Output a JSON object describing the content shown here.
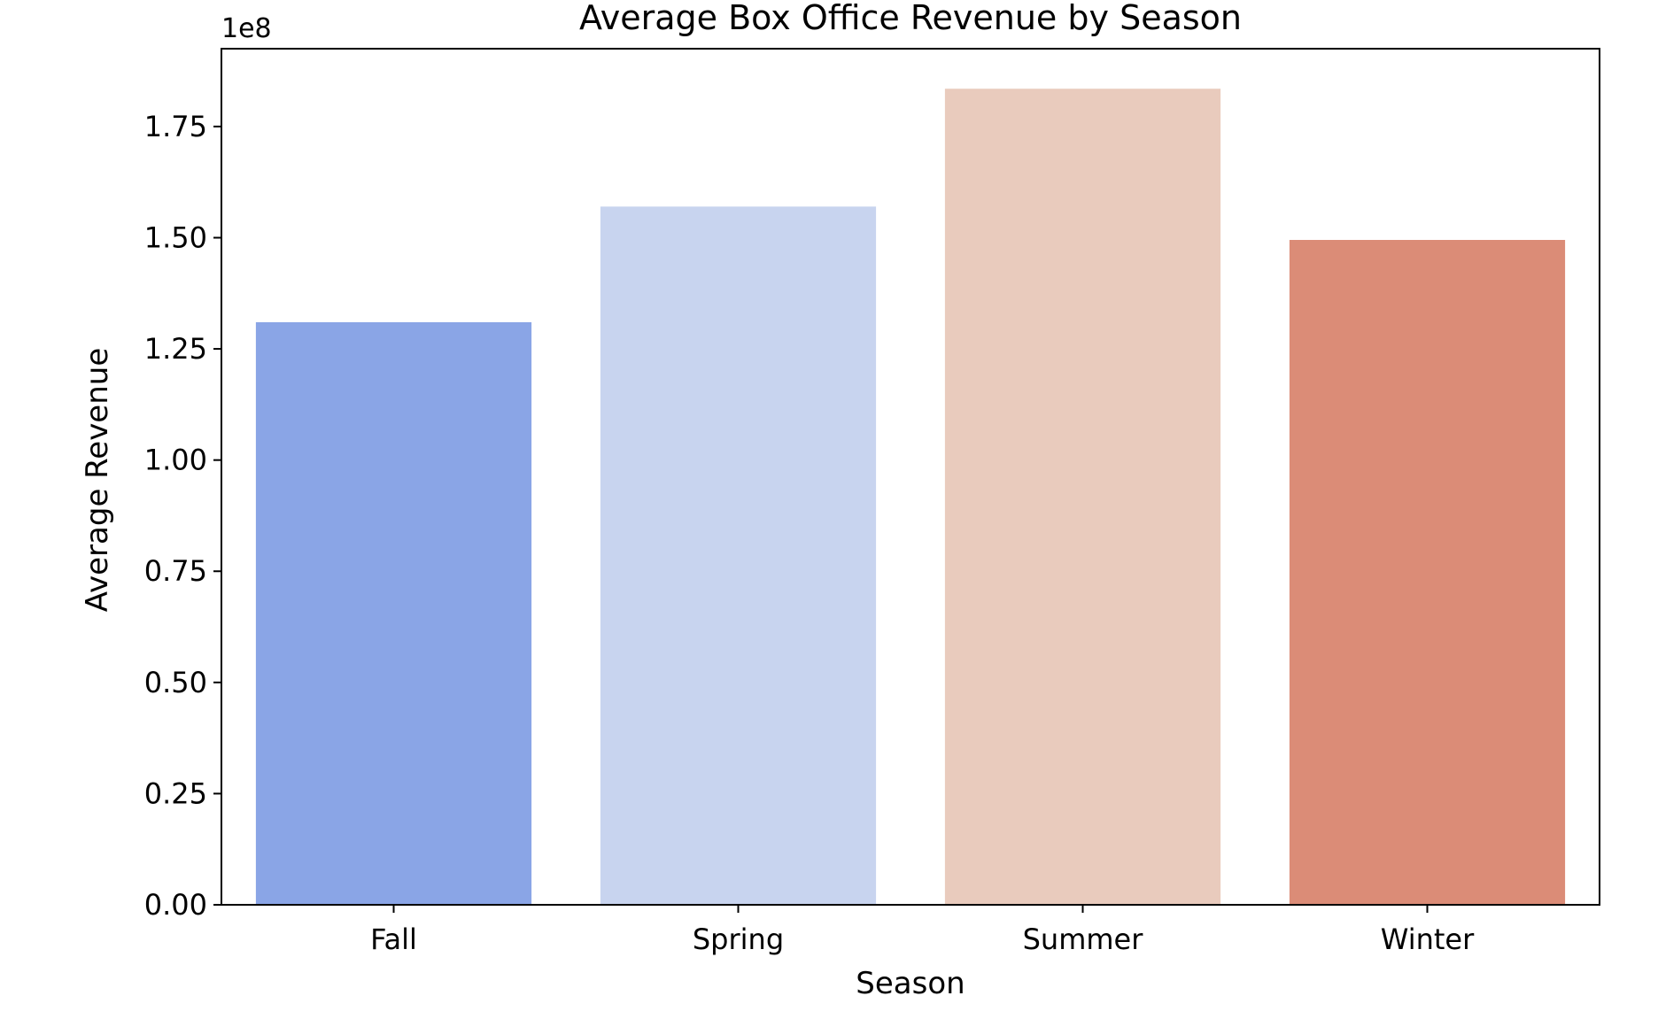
{
  "chart_data": {
    "type": "bar",
    "title": "Average Box Office Revenue by Season",
    "xlabel": "Season",
    "ylabel": "Average Revenue",
    "y_offset_label": "1e8",
    "y_scale": 100000000,
    "categories": [
      "Fall",
      "Spring",
      "Summer",
      "Winter"
    ],
    "values": [
      131000000,
      157000000,
      183500000,
      149500000
    ],
    "ylim": [
      0,
      192500000
    ],
    "y_ticks": [
      0,
      25000000,
      50000000,
      75000000,
      100000000,
      125000000,
      150000000,
      175000000
    ],
    "y_tick_labels": [
      "0.00",
      "0.25",
      "0.50",
      "0.75",
      "1.00",
      "1.25",
      "1.50",
      "1.75"
    ],
    "colors": [
      "#8aa5e6",
      "#c8d4ef",
      "#e9cbbd",
      "#db8c77"
    ],
    "grid": false,
    "legend": "none"
  }
}
